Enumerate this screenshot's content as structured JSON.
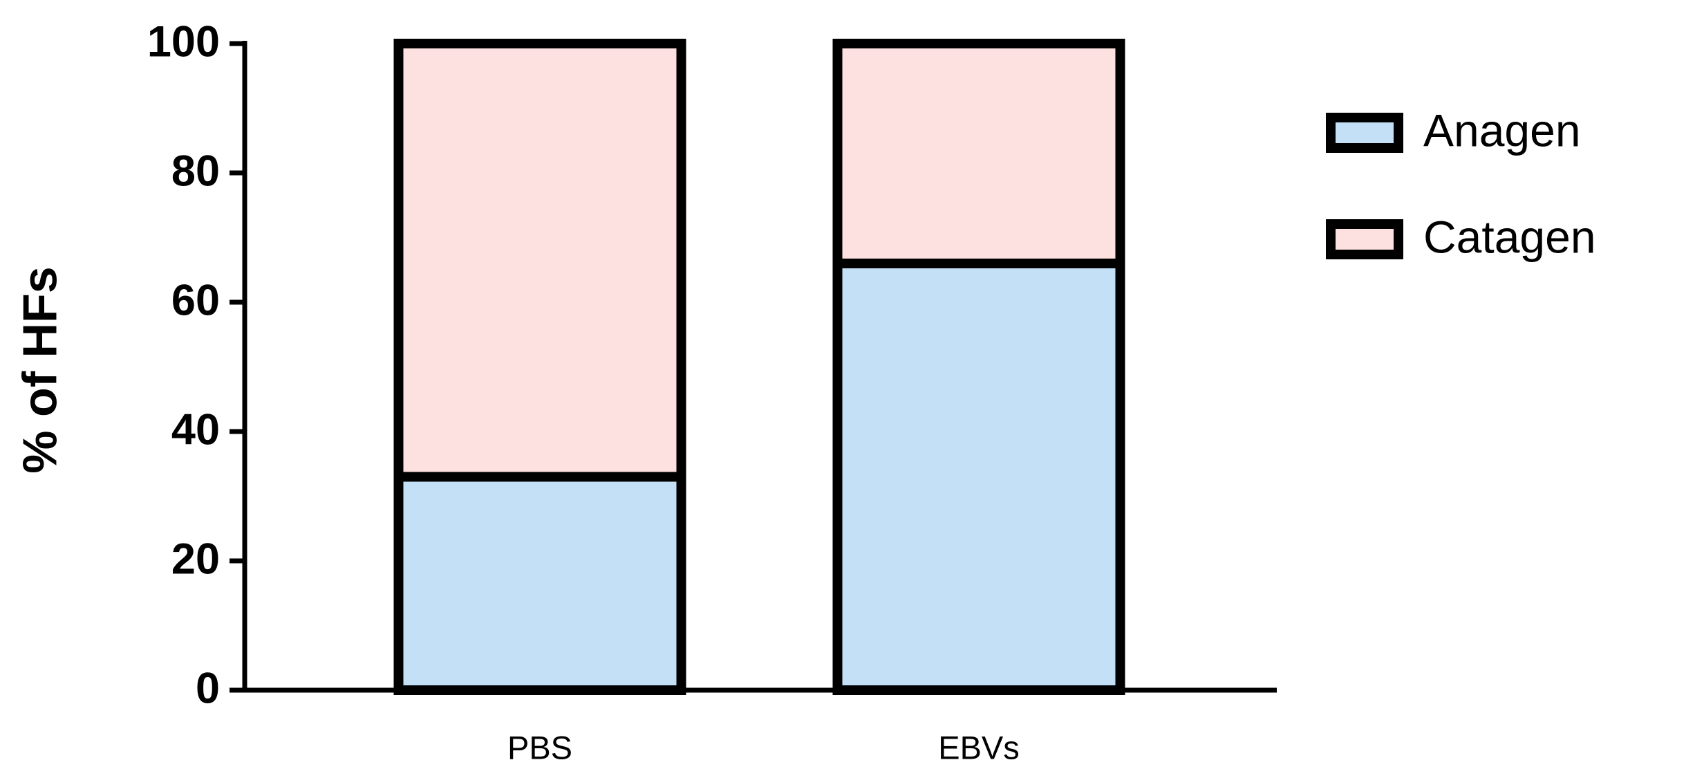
{
  "chart_data": {
    "type": "bar",
    "stacked": true,
    "y_label": "% of HFs",
    "categories": [
      "PBS",
      "EBVs"
    ],
    "series": [
      {
        "name": "Anagen",
        "color": "#c3e0f7",
        "values": [
          33,
          66
        ]
      },
      {
        "name": "Catagen",
        "color": "#fde0e0",
        "values": [
          67,
          34
        ]
      }
    ],
    "ylim": [
      0,
      100
    ],
    "yticks": [
      0,
      20,
      40,
      60,
      80,
      100
    ],
    "grid": false,
    "legend": "right"
  }
}
